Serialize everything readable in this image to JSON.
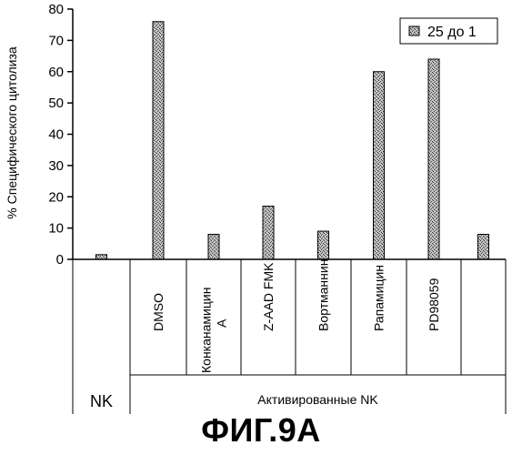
{
  "chart_data": {
    "type": "bar",
    "ylabel": "% Специфического цитолиза",
    "ylim": [
      0,
      80
    ],
    "yticks": [
      0,
      10,
      20,
      30,
      40,
      50,
      60,
      70,
      80
    ],
    "categories": [
      "NK",
      "DMSO",
      "Конканамицин A",
      "Z-AAD FMK",
      "Вортманнин",
      "Рапамицин",
      "PD98059",
      ""
    ],
    "category_label_lines": [
      [
        "NK"
      ],
      [
        "DMSO"
      ],
      [
        "Конканамицин",
        "A"
      ],
      [
        "Z-AAD FMK"
      ],
      [
        "Вортманнин"
      ],
      [
        "Рапамицин"
      ],
      [
        "PD98059"
      ],
      [
        ""
      ]
    ],
    "series": [
      {
        "name": "25 до 1",
        "values": [
          1.5,
          76,
          8,
          17,
          9,
          60,
          64,
          8
        ]
      }
    ],
    "group_labels": [
      {
        "label": "NK",
        "from": 0,
        "to": 0
      },
      {
        "label": "Активированные NK",
        "from": 1,
        "to": 7
      }
    ],
    "legend": {
      "placement": "top-right",
      "entries": [
        "25 до 1"
      ]
    },
    "grid": false
  },
  "figure_title": "ФИГ.9А",
  "colors": {
    "bar_fill": "#9a9a9a",
    "axis": "#000000",
    "background": "#ffffff"
  }
}
